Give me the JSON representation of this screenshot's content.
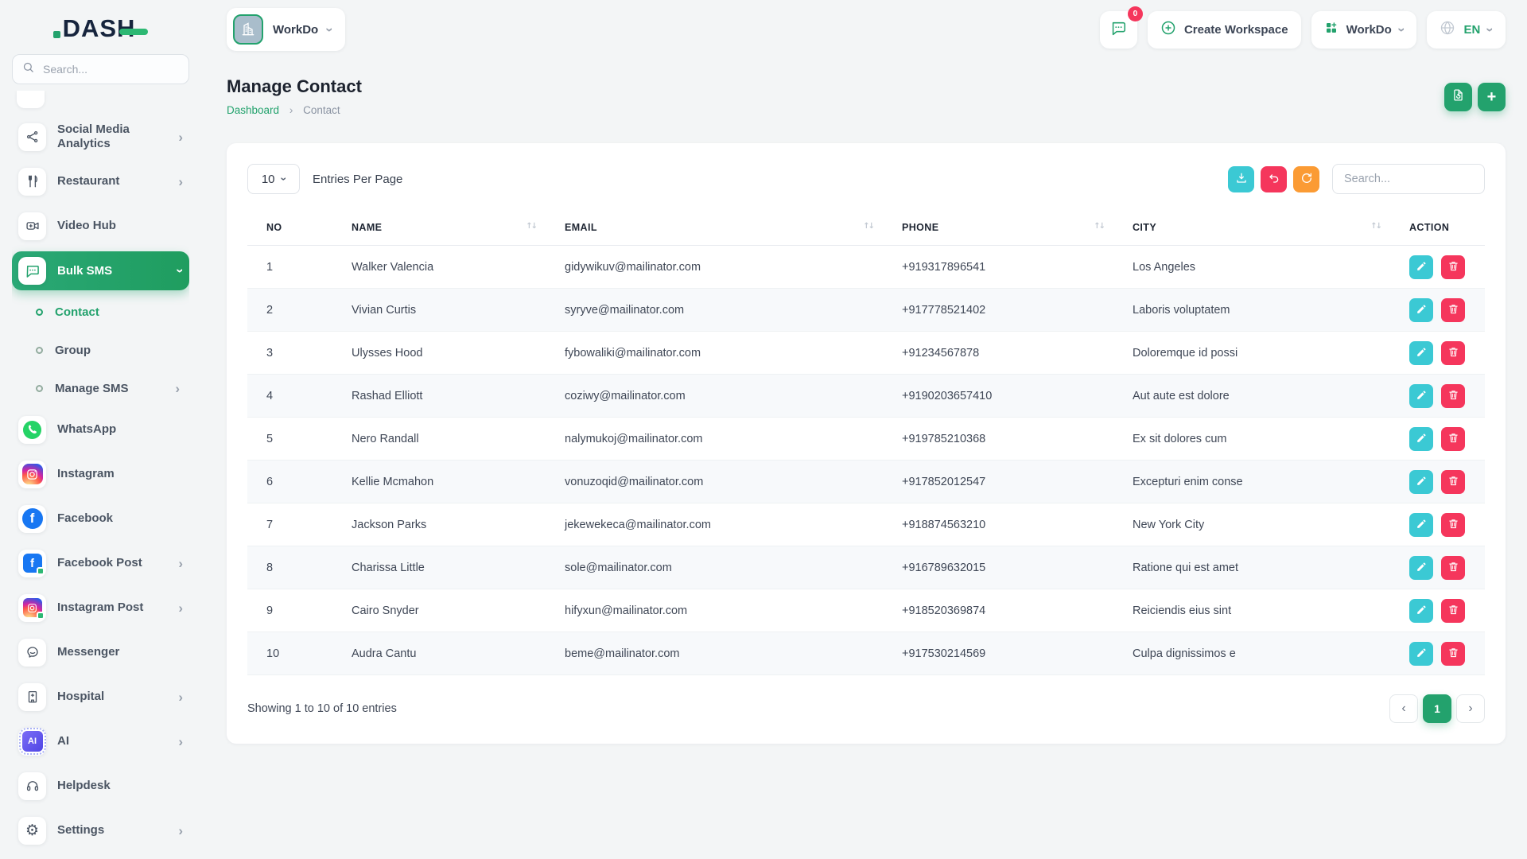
{
  "colors": {
    "primary": "#23a26d",
    "primary-dark": "#1e9e60",
    "teal": "#3bc9d4",
    "pink": "#f5365c",
    "orange": "#fb9b34",
    "navy": "#16243d",
    "page-bg": "#f3f5f6",
    "card-bg": "#ffffff",
    "border": "#e3e8ec",
    "text-dark": "#1c222e",
    "text": "#424b5a",
    "text-muted": "#8a93a2",
    "row-alt": "#f7f9fb",
    "facebook": "#1877f2",
    "whatsapp": "#25d366"
  },
  "logo": {
    "text": "DASH"
  },
  "sidebar": {
    "search_placeholder": "Search...",
    "items": [
      {
        "type": "partial",
        "icon": "hidden-item-icon",
        "label": ""
      },
      {
        "type": "item",
        "icon": "social-analytics-icon",
        "label": "Social Media Analytics",
        "chevron": "right"
      },
      {
        "type": "item",
        "icon": "restaurant-icon",
        "label": "Restaurant",
        "chevron": "right"
      },
      {
        "type": "item",
        "icon": "video-hub-icon",
        "label": "Video Hub"
      },
      {
        "type": "active",
        "icon": "bulk-sms-icon",
        "label": "Bulk SMS",
        "chevron": "down"
      },
      {
        "type": "sub",
        "label": "Contact",
        "active": true
      },
      {
        "type": "sub",
        "label": "Group"
      },
      {
        "type": "sub",
        "label": "Manage SMS",
        "chevron": "right"
      },
      {
        "type": "item",
        "icon": "whatsapp-icon",
        "label": "WhatsApp"
      },
      {
        "type": "item",
        "icon": "instagram-icon",
        "label": "Instagram"
      },
      {
        "type": "item",
        "icon": "facebook-icon",
        "label": "Facebook"
      },
      {
        "type": "item",
        "icon": "facebook-post-icon",
        "label": "Facebook Post",
        "chevron": "right"
      },
      {
        "type": "item",
        "icon": "instagram-post-icon",
        "label": "Instagram Post",
        "chevron": "right"
      },
      {
        "type": "item",
        "icon": "messenger-icon",
        "label": "Messenger"
      },
      {
        "type": "item",
        "icon": "hospital-icon",
        "label": "Hospital",
        "chevron": "right"
      },
      {
        "type": "item",
        "icon": "ai-icon",
        "label": "AI",
        "chevron": "right"
      },
      {
        "type": "item",
        "icon": "helpdesk-icon",
        "label": "Helpdesk"
      },
      {
        "type": "item",
        "icon": "settings-icon",
        "label": "Settings",
        "chevron": "right"
      }
    ]
  },
  "topbar": {
    "workspace_label": "WorkDo",
    "chat_badge": "0",
    "create_workspace_label": "Create Workspace",
    "workdo_label": "WorkDo",
    "language_label": "EN"
  },
  "page": {
    "title": "Manage Contact",
    "breadcrumb": {
      "home": "Dashboard",
      "separator": "›",
      "current": "Contact"
    }
  },
  "toolbar": {
    "entries_value": "10",
    "entries_label": "Entries Per Page",
    "search_placeholder": "Search..."
  },
  "table": {
    "columns": [
      {
        "label": "NO",
        "sortable": false
      },
      {
        "label": "NAME",
        "sortable": true
      },
      {
        "label": "EMAIL",
        "sortable": true
      },
      {
        "label": "PHONE",
        "sortable": true
      },
      {
        "label": "CITY",
        "sortable": true
      },
      {
        "label": "ACTION",
        "sortable": false
      }
    ],
    "rows": [
      {
        "no": "1",
        "name": "Walker Valencia",
        "email": "gidywikuv@mailinator.com",
        "phone": "+919317896541",
        "city": "Los Angeles"
      },
      {
        "no": "2",
        "name": "Vivian Curtis",
        "email": "syryve@mailinator.com",
        "phone": "+917778521402",
        "city": "Laboris voluptatem"
      },
      {
        "no": "3",
        "name": "Ulysses Hood",
        "email": "fybowaliki@mailinator.com",
        "phone": "+91234567878",
        "city": "Doloremque id possi"
      },
      {
        "no": "4",
        "name": "Rashad Elliott",
        "email": "coziwy@mailinator.com",
        "phone": "+9190203657410",
        "city": "Aut aute est dolore"
      },
      {
        "no": "5",
        "name": "Nero Randall",
        "email": "nalymukoj@mailinator.com",
        "phone": "+919785210368",
        "city": "Ex sit dolores cum"
      },
      {
        "no": "6",
        "name": "Kellie Mcmahon",
        "email": "vonuzoqid@mailinator.com",
        "phone": "+917852012547",
        "city": "Excepturi enim conse"
      },
      {
        "no": "7",
        "name": "Jackson Parks",
        "email": "jekewekeca@mailinator.com",
        "phone": "+918874563210",
        "city": "New York City"
      },
      {
        "no": "8",
        "name": "Charissa Little",
        "email": "sole@mailinator.com",
        "phone": "+916789632015",
        "city": "Ratione qui est amet"
      },
      {
        "no": "9",
        "name": "Cairo Snyder",
        "email": "hifyxun@mailinator.com",
        "phone": "+918520369874",
        "city": "Reiciendis eius sint"
      },
      {
        "no": "10",
        "name": "Audra Cantu",
        "email": "beme@mailinator.com",
        "phone": "+917530214569",
        "city": "Culpa dignissimos e"
      }
    ]
  },
  "footer": {
    "showing_text": "Showing 1 to 10 of 10 entries",
    "prev": "‹",
    "page": "1",
    "next": "›"
  }
}
